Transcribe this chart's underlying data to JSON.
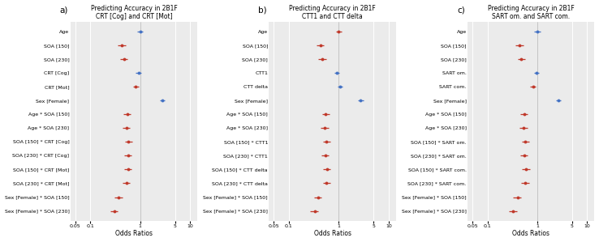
{
  "panels": [
    {
      "label": "a)",
      "title": "Predicting Accuracy in 2B1F\nCRT [Cog] and CRT [Mot]",
      "xlabel": "Odds Ratios",
      "rows": [
        {
          "name": "Age",
          "or": 1.0,
          "lo": 0.87,
          "hi": 1.15,
          "color": "#4472C4"
        },
        {
          "name": "SOA [150]",
          "or": 0.43,
          "lo": 0.36,
          "hi": 0.51,
          "color": "#C0392B"
        },
        {
          "name": "SOA [230]",
          "or": 0.47,
          "lo": 0.39,
          "hi": 0.56,
          "color": "#C0392B"
        },
        {
          "name": "CRT [Cog]",
          "or": 0.93,
          "lo": 0.82,
          "hi": 1.05,
          "color": "#4472C4"
        },
        {
          "name": "CRT [Mot]",
          "or": 0.82,
          "lo": 0.72,
          "hi": 0.93,
          "color": "#C0392B"
        },
        {
          "name": "Sex [Female]",
          "or": 2.75,
          "lo": 2.45,
          "hi": 3.1,
          "color": "#4472C4"
        },
        {
          "name": "Age * SOA [150]",
          "or": 0.55,
          "lo": 0.46,
          "hi": 0.65,
          "color": "#C0392B"
        },
        {
          "name": "Age * SOA [230]",
          "or": 0.53,
          "lo": 0.44,
          "hi": 0.63,
          "color": "#C0392B"
        },
        {
          "name": "SOA [150] * CRT [Cog]",
          "or": 0.58,
          "lo": 0.49,
          "hi": 0.69,
          "color": "#C0392B"
        },
        {
          "name": "SOA [230] * CRT [Cog]",
          "or": 0.57,
          "lo": 0.48,
          "hi": 0.68,
          "color": "#C0392B"
        },
        {
          "name": "SOA [150] * CRT [Mot]",
          "or": 0.57,
          "lo": 0.48,
          "hi": 0.68,
          "color": "#C0392B"
        },
        {
          "name": "SOA [230] * CRT [Mot]",
          "or": 0.53,
          "lo": 0.44,
          "hi": 0.63,
          "color": "#C0392B"
        },
        {
          "name": "Sex [Female] * SOA [150]",
          "or": 0.37,
          "lo": 0.31,
          "hi": 0.44,
          "color": "#C0392B"
        },
        {
          "name": "Sex [Female] * SOA [230]",
          "or": 0.3,
          "lo": 0.25,
          "hi": 0.36,
          "color": "#C0392B"
        }
      ],
      "xlim": [
        0.04,
        14
      ],
      "xticks": [
        0.05,
        0.1,
        1,
        5,
        10
      ]
    },
    {
      "label": "b)",
      "title": "Predicting Accuracy in 2B1F\nCTT1 and CTT delta",
      "xlabel": "Odds Ratios",
      "rows": [
        {
          "name": "Age",
          "or": 1.0,
          "lo": 0.87,
          "hi": 1.15,
          "color": "#C0392B"
        },
        {
          "name": "SOA [150]",
          "or": 0.43,
          "lo": 0.36,
          "hi": 0.51,
          "color": "#C0392B"
        },
        {
          "name": "SOA [230]",
          "or": 0.47,
          "lo": 0.39,
          "hi": 0.56,
          "color": "#C0392B"
        },
        {
          "name": "CTT1",
          "or": 0.92,
          "lo": 0.82,
          "hi": 1.03,
          "color": "#4472C4"
        },
        {
          "name": "CTT delta",
          "or": 1.05,
          "lo": 0.94,
          "hi": 1.17,
          "color": "#4472C4"
        },
        {
          "name": "Sex [Female]",
          "or": 2.75,
          "lo": 2.45,
          "hi": 3.1,
          "color": "#4472C4"
        },
        {
          "name": "Age * SOA [150]",
          "or": 0.55,
          "lo": 0.46,
          "hi": 0.65,
          "color": "#C0392B"
        },
        {
          "name": "Age * SOA [230]",
          "or": 0.53,
          "lo": 0.44,
          "hi": 0.63,
          "color": "#C0392B"
        },
        {
          "name": "SOA [150] * CTT1",
          "or": 0.57,
          "lo": 0.48,
          "hi": 0.68,
          "color": "#C0392B"
        },
        {
          "name": "SOA [230] * CTT1",
          "or": 0.54,
          "lo": 0.45,
          "hi": 0.64,
          "color": "#C0392B"
        },
        {
          "name": "SOA [150] * CTT delta",
          "or": 0.58,
          "lo": 0.49,
          "hi": 0.69,
          "color": "#C0392B"
        },
        {
          "name": "SOA [230] * CTT delta",
          "or": 0.57,
          "lo": 0.48,
          "hi": 0.68,
          "color": "#C0392B"
        },
        {
          "name": "Sex [Female] * SOA [150]",
          "or": 0.38,
          "lo": 0.32,
          "hi": 0.45,
          "color": "#C0392B"
        },
        {
          "name": "Sex [Female] * SOA [230]",
          "or": 0.33,
          "lo": 0.27,
          "hi": 0.39,
          "color": "#C0392B"
        }
      ],
      "xlim": [
        0.04,
        14
      ],
      "xticks": [
        0.05,
        0.1,
        1,
        5,
        10
      ]
    },
    {
      "label": "c)",
      "title": "Predicting Accuracy in 2B1F\nSART om. and SART com.",
      "xlabel": "Odds Ratios",
      "rows": [
        {
          "name": "Age",
          "or": 1.0,
          "lo": 0.87,
          "hi": 1.15,
          "color": "#4472C4"
        },
        {
          "name": "SOA [150]",
          "or": 0.44,
          "lo": 0.37,
          "hi": 0.52,
          "color": "#C0392B"
        },
        {
          "name": "SOA [230]",
          "or": 0.48,
          "lo": 0.4,
          "hi": 0.57,
          "color": "#C0392B"
        },
        {
          "name": "SART om.",
          "or": 0.95,
          "lo": 0.85,
          "hi": 1.06,
          "color": "#4472C4"
        },
        {
          "name": "SART com.",
          "or": 0.82,
          "lo": 0.72,
          "hi": 0.93,
          "color": "#C0392B"
        },
        {
          "name": "Sex [Female]",
          "or": 2.65,
          "lo": 2.35,
          "hi": 2.98,
          "color": "#4472C4"
        },
        {
          "name": "Age * SOA [150]",
          "or": 0.55,
          "lo": 0.46,
          "hi": 0.65,
          "color": "#C0392B"
        },
        {
          "name": "Age * SOA [230]",
          "or": 0.53,
          "lo": 0.44,
          "hi": 0.63,
          "color": "#C0392B"
        },
        {
          "name": "SOA [150] * SART om.",
          "or": 0.58,
          "lo": 0.49,
          "hi": 0.69,
          "color": "#C0392B"
        },
        {
          "name": "SOA [230] * SART om.",
          "or": 0.55,
          "lo": 0.46,
          "hi": 0.65,
          "color": "#C0392B"
        },
        {
          "name": "SOA [150] * SART com.",
          "or": 0.6,
          "lo": 0.5,
          "hi": 0.71,
          "color": "#C0392B"
        },
        {
          "name": "SOA [230] * SART com.",
          "or": 0.57,
          "lo": 0.48,
          "hi": 0.68,
          "color": "#C0392B"
        },
        {
          "name": "Sex [Female] * SOA [150]",
          "or": 0.4,
          "lo": 0.33,
          "hi": 0.47,
          "color": "#C0392B"
        },
        {
          "name": "Sex [Female] * SOA [230]",
          "or": 0.33,
          "lo": 0.27,
          "hi": 0.39,
          "color": "#C0392B"
        }
      ],
      "xlim": [
        0.04,
        14
      ],
      "xticks": [
        0.05,
        0.1,
        1,
        5,
        10
      ]
    }
  ],
  "bg_color": "#EBEBEB",
  "grid_color": "#FFFFFF",
  "title_fontsize": 5.5,
  "label_fontsize": 4.5,
  "tick_fontsize": 4.5,
  "xlabel_fontsize": 5.5,
  "panel_label_fontsize": 7.5
}
